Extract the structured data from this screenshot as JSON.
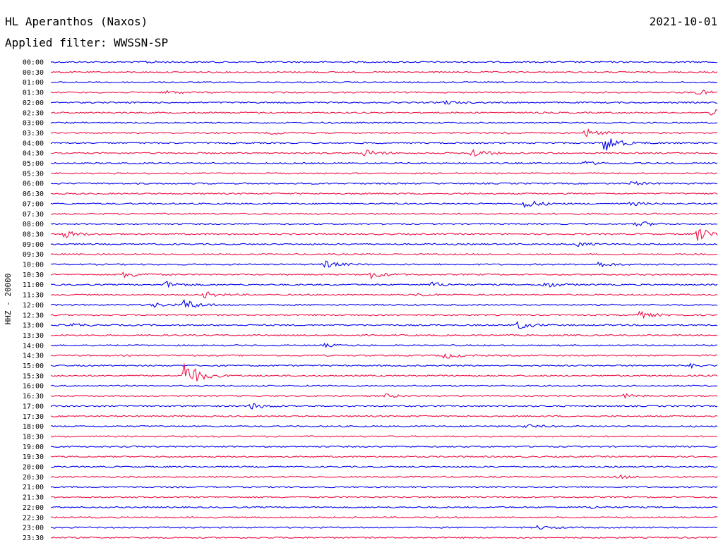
{
  "header": {
    "station": "HL Aperanthos (Naxos)",
    "date": "2021-10-01",
    "filter": "Applied filter: WWSSN-SP"
  },
  "chart_data": {
    "type": "line",
    "title": "HL Aperanthos (Naxos)",
    "subtitle": "Applied filter: WWSSN-SP",
    "ylabel": "HHZ - 20000",
    "row_labels": [
      "00:00",
      "00:30",
      "01:00",
      "01:30",
      "02:00",
      "02:30",
      "03:00",
      "03:30",
      "04:00",
      "04:30",
      "05:00",
      "05:30",
      "06:00",
      "06:30",
      "07:00",
      "07:30",
      "08:00",
      "08:30",
      "09:00",
      "09:30",
      "10:00",
      "10:30",
      "11:00",
      "11:30",
      "12:00",
      "12:30",
      "13:00",
      "13:30",
      "14:00",
      "14:30",
      "15:00",
      "15:30",
      "16:00",
      "16:30",
      "17:00",
      "17:30",
      "18:00",
      "18:30",
      "19:00",
      "19:30",
      "20:00",
      "20:30",
      "21:00",
      "21:30",
      "22:00",
      "22:30",
      "23:00",
      "23:30"
    ],
    "trace_colors": [
      "#0000ee",
      "#ee1144"
    ],
    "events": [
      {
        "row": "00:00",
        "t": 0.14,
        "amp": 0.2
      },
      {
        "row": "01:30",
        "t": 0.17,
        "amp": 0.3
      },
      {
        "row": "01:30",
        "t": 0.97,
        "amp": 0.4
      },
      {
        "row": "02:00",
        "t": 0.59,
        "amp": 0.3
      },
      {
        "row": "02:30",
        "t": 0.99,
        "amp": 0.6
      },
      {
        "row": "03:30",
        "t": 0.33,
        "amp": 0.2
      },
      {
        "row": "03:30",
        "t": 0.68,
        "amp": 0.2
      },
      {
        "row": "03:30",
        "t": 0.8,
        "amp": 0.7
      },
      {
        "row": "04:00",
        "t": 0.83,
        "amp": 1.6
      },
      {
        "row": "04:30",
        "t": 0.47,
        "amp": 0.6
      },
      {
        "row": "04:30",
        "t": 0.63,
        "amp": 0.8
      },
      {
        "row": "05:00",
        "t": 0.8,
        "amp": 0.3
      },
      {
        "row": "06:00",
        "t": 0.87,
        "amp": 0.3
      },
      {
        "row": "07:00",
        "t": 0.71,
        "amp": 0.8
      },
      {
        "row": "07:00",
        "t": 0.87,
        "amp": 0.3
      },
      {
        "row": "08:00",
        "t": 0.88,
        "amp": 0.5
      },
      {
        "row": "08:30",
        "t": 0.02,
        "amp": 0.6
      },
      {
        "row": "08:30",
        "t": 0.97,
        "amp": 1.2
      },
      {
        "row": "09:00",
        "t": 0.79,
        "amp": 0.3
      },
      {
        "row": "10:00",
        "t": 0.41,
        "amp": 0.6
      },
      {
        "row": "10:00",
        "t": 0.82,
        "amp": 0.4
      },
      {
        "row": "10:30",
        "t": 0.11,
        "amp": 0.6
      },
      {
        "row": "10:30",
        "t": 0.48,
        "amp": 0.6
      },
      {
        "row": "11:00",
        "t": 0.17,
        "amp": 0.6
      },
      {
        "row": "11:00",
        "t": 0.57,
        "amp": 0.4
      },
      {
        "row": "11:00",
        "t": 0.74,
        "amp": 0.5
      },
      {
        "row": "11:30",
        "t": 0.23,
        "amp": 0.5
      },
      {
        "row": "11:30",
        "t": 0.55,
        "amp": 0.3
      },
      {
        "row": "12:00",
        "t": 0.15,
        "amp": 0.4
      },
      {
        "row": "12:00",
        "t": 0.2,
        "amp": 0.9
      },
      {
        "row": "12:30",
        "t": 0.88,
        "amp": 0.6
      },
      {
        "row": "13:00",
        "t": 0.03,
        "amp": 0.3
      },
      {
        "row": "13:00",
        "t": 0.7,
        "amp": 0.7
      },
      {
        "row": "14:00",
        "t": 0.41,
        "amp": 0.2
      },
      {
        "row": "14:30",
        "t": 0.59,
        "amp": 0.5
      },
      {
        "row": "15:00",
        "t": 0.96,
        "amp": 0.3
      },
      {
        "row": "15:30",
        "t": 0.2,
        "amp": 2.6
      },
      {
        "row": "16:30",
        "t": 0.5,
        "amp": 0.3
      },
      {
        "row": "16:30",
        "t": 0.86,
        "amp": 0.3
      },
      {
        "row": "17:00",
        "t": 0.3,
        "amp": 0.5
      },
      {
        "row": "18:00",
        "t": 0.71,
        "amp": 0.3
      },
      {
        "row": "20:30",
        "t": 0.85,
        "amp": 0.3
      },
      {
        "row": "22:00",
        "t": 0.81,
        "amp": 0.2
      },
      {
        "row": "23:00",
        "t": 0.73,
        "amp": 0.3
      }
    ]
  }
}
